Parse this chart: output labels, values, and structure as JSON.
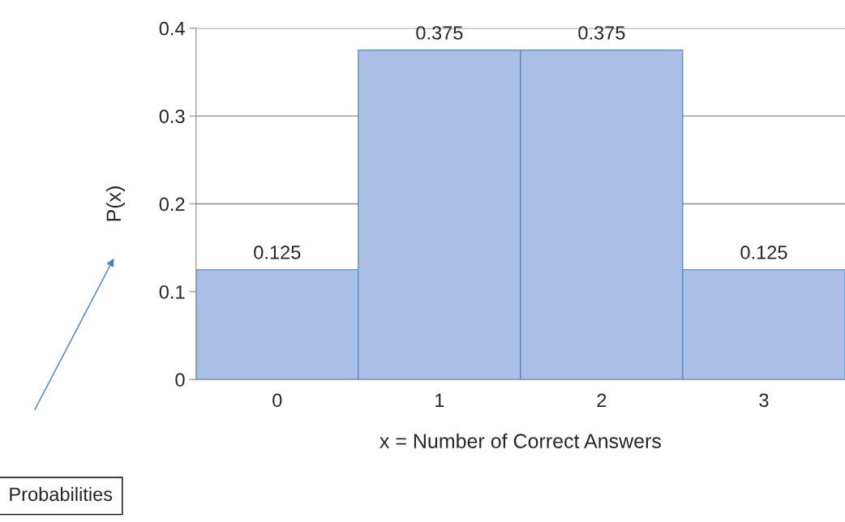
{
  "chart_data": {
    "type": "bar",
    "xlabel": "x = Number of Correct Answers",
    "ylabel": "P(x)",
    "categories": [
      "0",
      "1",
      "2",
      "3"
    ],
    "values": [
      0.125,
      0.375,
      0.375,
      0.125
    ],
    "color": "#aabfe6",
    "ylim": [
      0,
      0.4
    ],
    "yticks": [
      0,
      0.1,
      0.2,
      0.3,
      0.4
    ],
    "grid": "y",
    "data_labels": true,
    "annotations": [
      "Probabilities"
    ]
  }
}
